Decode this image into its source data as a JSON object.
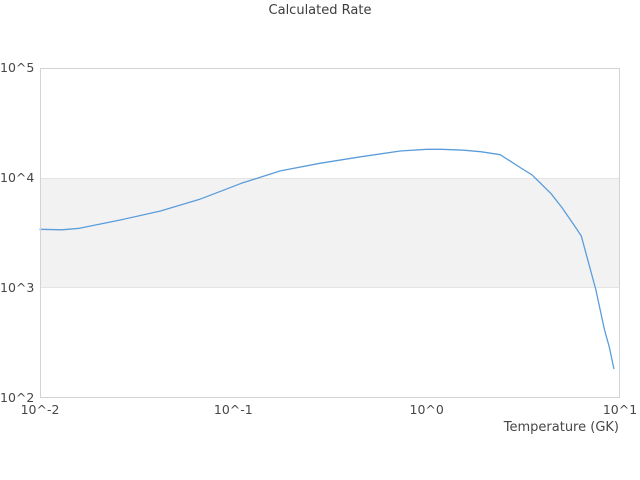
{
  "chart_data": {
    "type": "line",
    "title": "Calculated Rate",
    "xlabel": "Temperature (GK)",
    "ylabel": "",
    "x_scale": "log",
    "y_scale": "log",
    "xlim": [
      0.01,
      10
    ],
    "ylim": [
      100,
      100000
    ],
    "grid": "none",
    "legend": "none",
    "band_y": [
      1000,
      10000
    ],
    "band_color": "#f2f2f2",
    "x_ticks": [
      {
        "value": 0.01,
        "label": "10^-2"
      },
      {
        "value": 0.1,
        "label": "10^-1"
      },
      {
        "value": 1,
        "label": "10^0"
      },
      {
        "value": 10,
        "label": "10^1"
      }
    ],
    "y_ticks": [
      {
        "value": 100000,
        "label": "10^5"
      },
      {
        "value": 10000,
        "label": "10^4"
      },
      {
        "value": 1000,
        "label": "10^3"
      },
      {
        "value": 100,
        "label": "10^2"
      }
    ],
    "series": [
      {
        "name": "Calculated Rate",
        "color": "#5b9ddb",
        "points": [
          [
            0.01,
            3420
          ],
          [
            0.013,
            3380
          ],
          [
            0.016,
            3490
          ],
          [
            0.026,
            4150
          ],
          [
            0.042,
            5010
          ],
          [
            0.067,
            6400
          ],
          [
            0.11,
            8950
          ],
          [
            0.175,
            11600
          ],
          [
            0.28,
            13600
          ],
          [
            0.455,
            15600
          ],
          [
            0.73,
            17600
          ],
          [
            1.0,
            18250
          ],
          [
            1.2,
            18250
          ],
          [
            1.55,
            17900
          ],
          [
            1.9,
            17350
          ],
          [
            2.4,
            16300
          ],
          [
            3.1,
            12200
          ],
          [
            3.5,
            10700
          ],
          [
            3.9,
            8900
          ],
          [
            4.4,
            7200
          ],
          [
            5.0,
            5400
          ],
          [
            5.8,
            3700
          ],
          [
            6.3,
            2990
          ],
          [
            7.5,
            970
          ],
          [
            8.3,
            420
          ],
          [
            8.8,
            290
          ],
          [
            9.3,
            185
          ]
        ]
      }
    ]
  }
}
